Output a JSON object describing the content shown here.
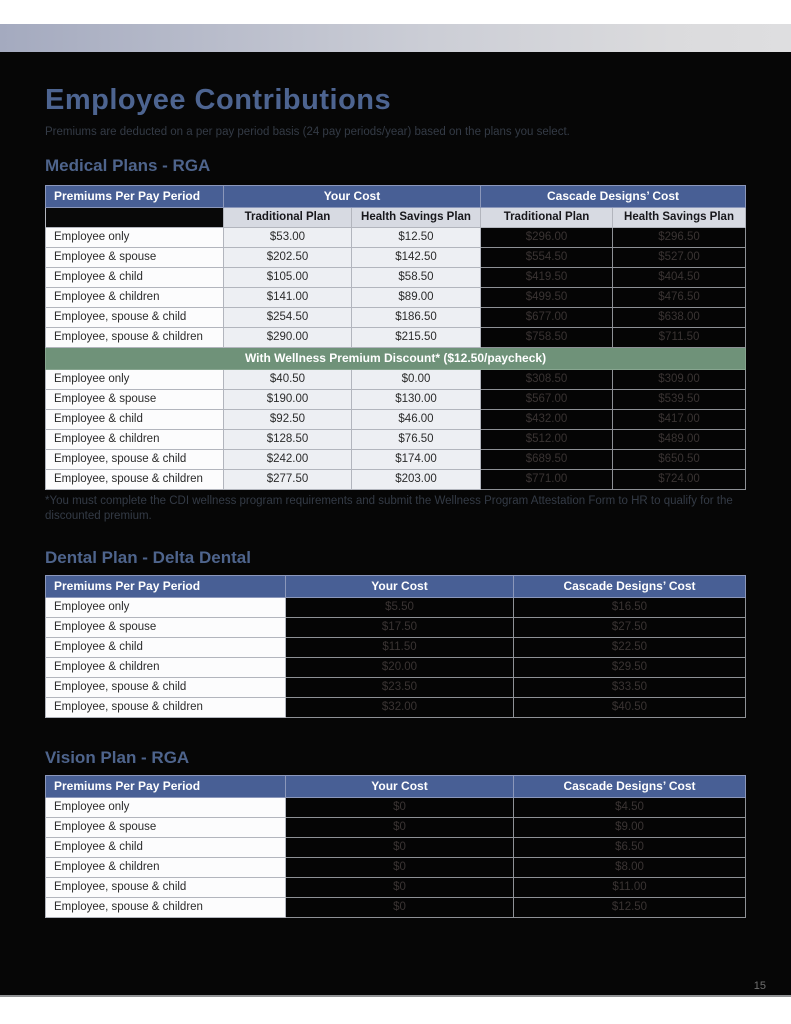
{
  "page": {
    "title": "Employee Contributions",
    "subtitle": "Premiums are deducted on a per pay period basis (24 pay periods/year) based on the plans you select.",
    "page_number": "15"
  },
  "appearance": {
    "header_blue": "#485f95",
    "subheader_gray": "#d7dae2",
    "wellness_green": "#6f9279",
    "heading_blue": "#4e648c",
    "page_background": "#060606",
    "light_cell": "#edeff3",
    "dark_cell_text": "#3a3433"
  },
  "medical": {
    "heading": "Medical Plans - RGA",
    "col_header": "Premiums Per Pay Period",
    "group_headers": [
      "Your Cost",
      "Cascade Designs’ Cost"
    ],
    "sub_headers": [
      "Traditional Plan",
      "Health Savings Plan",
      "Traditional Plan",
      "Health Savings Plan"
    ],
    "rows": [
      {
        "label": "Employee only",
        "values": [
          "$53.00",
          "$12.50",
          "$296.00",
          "$296.50"
        ]
      },
      {
        "label": "Employee & spouse",
        "values": [
          "$202.50",
          "$142.50",
          "$554.50",
          "$527.00"
        ]
      },
      {
        "label": "Employee & child",
        "values": [
          "$105.00",
          "$58.50",
          "$419.50",
          "$404.50"
        ]
      },
      {
        "label": "Employee & children",
        "values": [
          "$141.00",
          "$89.00",
          "$499.50",
          "$476.50"
        ]
      },
      {
        "label": "Employee, spouse & child",
        "values": [
          "$254.50",
          "$186.50",
          "$677.00",
          "$638.00"
        ]
      },
      {
        "label": "Employee, spouse & children",
        "values": [
          "$290.00",
          "$215.50",
          "$758.50",
          "$711.50"
        ]
      }
    ],
    "wellness_band": "With Wellness Premium Discount* ($12.50/paycheck)",
    "wellness_rows": [
      {
        "label": "Employee only",
        "values": [
          "$40.50",
          "$0.00",
          "$308.50",
          "$309.00"
        ]
      },
      {
        "label": "Employee & spouse",
        "values": [
          "$190.00",
          "$130.00",
          "$567.00",
          "$539.50"
        ]
      },
      {
        "label": "Employee & child",
        "values": [
          "$92.50",
          "$46.00",
          "$432.00",
          "$417.00"
        ]
      },
      {
        "label": "Employee & children",
        "values": [
          "$128.50",
          "$76.50",
          "$512.00",
          "$489.00"
        ]
      },
      {
        "label": "Employee, spouse & child",
        "values": [
          "$242.00",
          "$174.00",
          "$689.50",
          "$650.50"
        ]
      },
      {
        "label": "Employee, spouse & children",
        "values": [
          "$277.50",
          "$203.00",
          "$771.00",
          "$724.00"
        ]
      }
    ],
    "footnote": "*You must complete the CDI wellness program requirements and submit the Wellness Program Attestation Form to HR to qualify for the discounted premium."
  },
  "dental": {
    "heading": "Dental Plan - Delta Dental",
    "headers": [
      "Premiums Per Pay Period",
      "Your Cost",
      "Cascade Designs’ Cost"
    ],
    "rows": [
      {
        "label": "Employee only",
        "values": [
          "$5.50",
          "$16.50"
        ]
      },
      {
        "label": "Employee & spouse",
        "values": [
          "$17.50",
          "$27.50"
        ]
      },
      {
        "label": "Employee & child",
        "values": [
          "$11.50",
          "$22.50"
        ]
      },
      {
        "label": "Employee & children",
        "values": [
          "$20.00",
          "$29.50"
        ]
      },
      {
        "label": "Employee, spouse & child",
        "values": [
          "$23.50",
          "$33.50"
        ]
      },
      {
        "label": "Employee, spouse & children",
        "values": [
          "$32.00",
          "$40.50"
        ]
      }
    ]
  },
  "vision": {
    "heading": "Vision Plan - RGA",
    "headers": [
      "Premiums Per Pay Period",
      "Your Cost",
      "Cascade Designs’ Cost"
    ],
    "rows": [
      {
        "label": "Employee only",
        "values": [
          "$0",
          "$4.50"
        ]
      },
      {
        "label": "Employee & spouse",
        "values": [
          "$0",
          "$9.00"
        ]
      },
      {
        "label": "Employee & child",
        "values": [
          "$0",
          "$6.50"
        ]
      },
      {
        "label": "Employee & children",
        "values": [
          "$0",
          "$8.00"
        ]
      },
      {
        "label": "Employee, spouse & child",
        "values": [
          "$0",
          "$11.00"
        ]
      },
      {
        "label": "Employee, spouse & children",
        "values": [
          "$0",
          "$12.50"
        ]
      }
    ]
  }
}
